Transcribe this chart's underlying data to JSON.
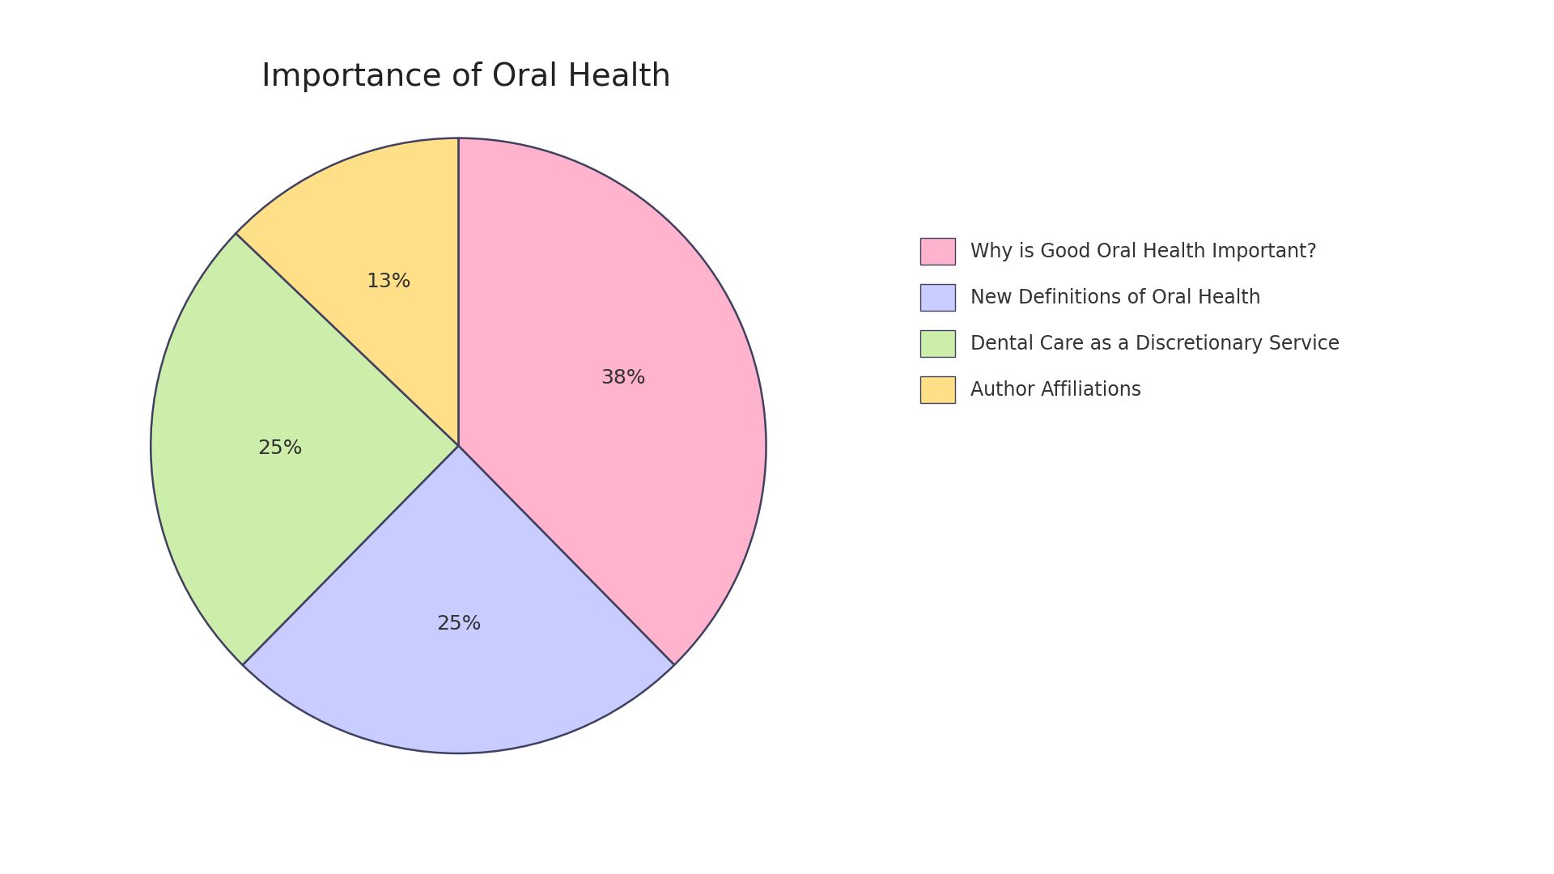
{
  "title": "Importance of Oral Health",
  "labels": [
    "Why is Good Oral Health Important?",
    "New Definitions of Oral Health",
    "Dental Care as a Discretionary Service",
    "Author Affiliations"
  ],
  "values": [
    38,
    25,
    25,
    13
  ],
  "pct_labels": [
    "38%",
    "25%",
    "25%",
    "13%"
  ],
  "colors": [
    "#FFB3CC",
    "#C8CCFF",
    "#CCEEAA",
    "#FFE088"
  ],
  "edge_color": "#404060",
  "background_color": "#FFFFFF",
  "title_fontsize": 28,
  "pct_fontsize": 18,
  "startangle": 90,
  "legend_fontsize": 17
}
